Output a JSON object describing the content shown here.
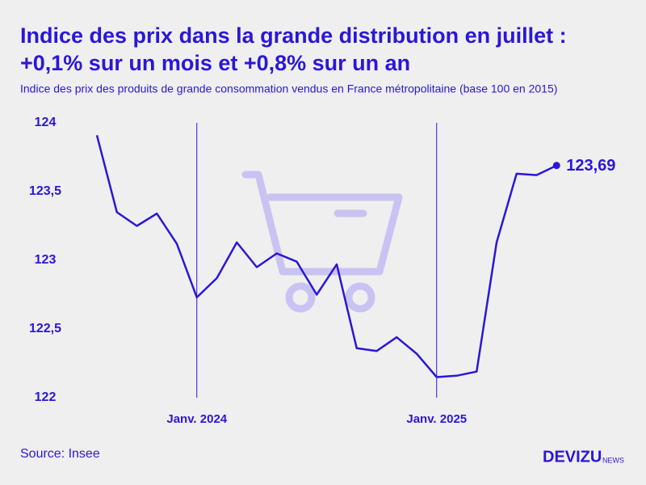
{
  "chart_data": {
    "type": "line",
    "title": [
      "Indice des prix dans la grande distribution en juillet :",
      "+0,1% sur un mois et +0,8% sur un an"
    ],
    "subtitle": "Indice des prix des produits de grande consommation vendus en France métropolitaine (base 100 en 2015)",
    "source": "Source: Insee",
    "logo": [
      "DEVIZU",
      "NEWS"
    ],
    "categories": [
      null,
      null,
      null,
      null,
      null,
      "Janv. 2024",
      null,
      null,
      null,
      null,
      null,
      null,
      null,
      null,
      null,
      null,
      null,
      "Janv. 2025",
      null,
      null,
      null,
      null,
      null,
      null
    ],
    "series": [
      {
        "color": "#2b17d6",
        "values": [
          123.91,
          123.35,
          123.25,
          123.34,
          123.12,
          122.73,
          122.87,
          123.13,
          122.95,
          123.05,
          122.99,
          122.75,
          122.97,
          122.36,
          122.34,
          122.44,
          122.32,
          122.15,
          122.16,
          122.19,
          123.13,
          123.63,
          123.62,
          123.69
        ],
        "value_labels": [
          null,
          null,
          null,
          null,
          null,
          null,
          null,
          null,
          null,
          null,
          null,
          null,
          null,
          null,
          null,
          null,
          null,
          null,
          null,
          null,
          null,
          null,
          null,
          "123,69"
        ]
      }
    ],
    "ylim": [
      122,
      124
    ],
    "yticks": [
      122,
      {
        "value": 122.5,
        "label": "122,5"
      },
      123,
      {
        "value": 123.5,
        "label": "123,5"
      },
      124
    ]
  }
}
